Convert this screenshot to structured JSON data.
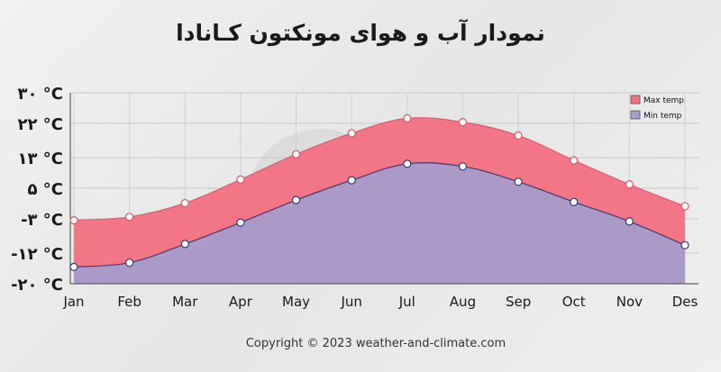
{
  "page": {
    "title": "نمودار آب و هوای مونکتون کـانادا",
    "copyright": "Copyright © 2023  weather-and-climate.com"
  },
  "chart_data": {
    "type": "area",
    "title": "نمودار آب و هوای مونکتون کـانادا",
    "categories": [
      "Jan",
      "Feb",
      "Mar",
      "Apr",
      "May",
      "Jun",
      "Jul",
      "Aug",
      "Sep",
      "Oct",
      "Nov",
      "Des"
    ],
    "y_ticks": [
      {
        "value": 30,
        "label": "۳۰ °C"
      },
      {
        "value": 22,
        "label": "۲۲ °C"
      },
      {
        "value": 13,
        "label": "۱۳ °C"
      },
      {
        "value": 5,
        "label": "۵ °C"
      },
      {
        "value": -3,
        "label": "-۳ °C"
      },
      {
        "value": -12,
        "label": "-۱۲ °C"
      },
      {
        "value": -20,
        "label": "-۲۰ °C"
      }
    ],
    "ylim": [
      -20,
      30
    ],
    "grid": true,
    "legend_position": "top-right",
    "series": [
      {
        "name": "Max temp",
        "color": "#f2707f",
        "values": [
          -3.4,
          -2.5,
          1.1,
          7.3,
          13.9,
          19.4,
          23.3,
          22.3,
          18.8,
          12.3,
          6.0,
          0.3
        ]
      },
      {
        "name": "Min temp",
        "color": "#a89bc9",
        "values": [
          -15.6,
          -14.5,
          -9.6,
          -4.0,
          1.9,
          7.1,
          11.4,
          10.7,
          6.7,
          1.4,
          -3.7,
          -9.9
        ]
      }
    ]
  }
}
